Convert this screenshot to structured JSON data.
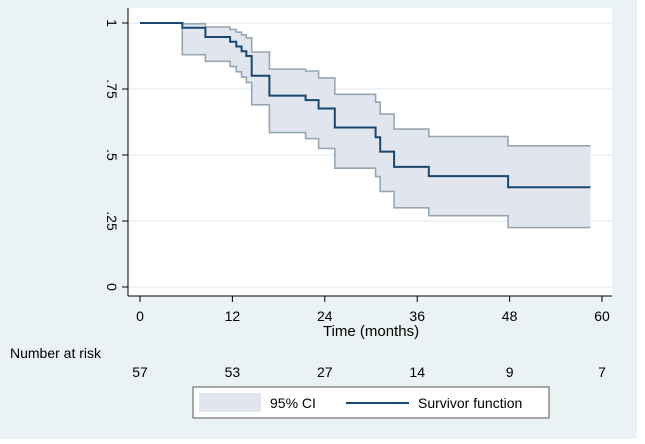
{
  "colors": {
    "outer_bg": "#eaf2f3",
    "plot_bg": "#ffffff",
    "grid": "#e6eef0",
    "ci_fill": "#e1e6ee",
    "ci_line": "#97a6b3",
    "survival_line": "#1a476f",
    "axis": "#000000"
  },
  "chart_data": {
    "type": "line",
    "title": "",
    "xlabel": "Time (months)",
    "ylabel": "",
    "xlim": [
      0,
      60
    ],
    "ylim": [
      0,
      1
    ],
    "x_ticks": [
      0,
      12,
      24,
      36,
      48,
      60
    ],
    "x_tick_labels": [
      "0",
      "12",
      "24",
      "36",
      "48",
      "60"
    ],
    "y_ticks": [
      0,
      0.25,
      0.5,
      0.75,
      1
    ],
    "y_tick_labels": [
      "0",
      ".25",
      ".5",
      ".75",
      "1"
    ],
    "grid": true,
    "series": [
      {
        "name": "Survivor function",
        "step": true,
        "x": [
          0,
          5.5,
          8.5,
          11.7,
          12.5,
          13.2,
          13.8,
          14.5,
          16.8,
          21.5,
          23.2,
          25.3,
          30.6,
          31.2,
          33.0,
          37.5,
          47.8,
          58.5
        ],
        "y": [
          1.0,
          0.982,
          0.947,
          0.929,
          0.911,
          0.893,
          0.875,
          0.8,
          0.725,
          0.708,
          0.676,
          0.604,
          0.567,
          0.513,
          0.455,
          0.42,
          0.378,
          0.378
        ]
      },
      {
        "name": "95% CI upper",
        "step": true,
        "x": [
          0,
          5.5,
          8.5,
          11.7,
          12.5,
          13.2,
          13.8,
          14.5,
          16.8,
          21.5,
          23.2,
          25.3,
          30.6,
          31.2,
          33.0,
          37.5,
          47.8,
          58.5
        ],
        "y": [
          1.0,
          0.997,
          0.985,
          0.975,
          0.965,
          0.955,
          0.944,
          0.89,
          0.825,
          0.818,
          0.792,
          0.73,
          0.7,
          0.655,
          0.598,
          0.57,
          0.535,
          0.535
        ]
      },
      {
        "name": "95% CI lower",
        "step": true,
        "x": [
          0,
          5.5,
          8.5,
          11.7,
          12.5,
          13.2,
          13.8,
          14.5,
          16.8,
          21.5,
          23.2,
          25.3,
          30.6,
          31.2,
          33.0,
          37.5,
          47.8,
          58.5
        ],
        "y": [
          1.0,
          0.88,
          0.855,
          0.835,
          0.815,
          0.795,
          0.775,
          0.69,
          0.585,
          0.562,
          0.525,
          0.45,
          0.418,
          0.362,
          0.3,
          0.27,
          0.225,
          0.225
        ]
      }
    ],
    "risk_table": {
      "label": "Number at risk",
      "times": [
        0,
        12,
        24,
        36,
        48,
        60
      ],
      "counts": [
        "57",
        "53",
        "27",
        "14",
        "9",
        "7"
      ]
    },
    "legend": {
      "position": "bottom",
      "entries": [
        {
          "label": "95% CI",
          "kind": "area"
        },
        {
          "label": "Survivor function",
          "kind": "line"
        }
      ]
    }
  }
}
